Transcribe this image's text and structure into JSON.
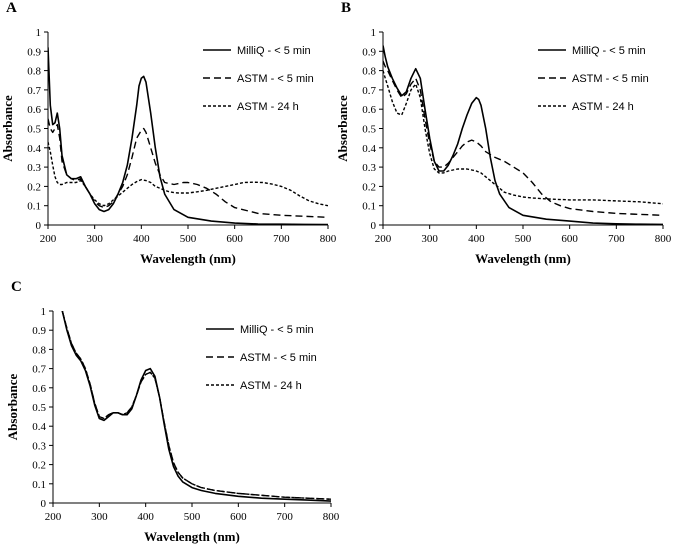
{
  "chart_data": [
    {
      "type": "line",
      "panel": "A",
      "xlabel": "Wavelength (nm)",
      "ylabel": "Absorbance",
      "xlim": [
        200,
        800
      ],
      "ylim": [
        0,
        1
      ],
      "xticks": [
        "200",
        "300",
        "400",
        "500",
        "600",
        "700",
        "800"
      ],
      "yticks": [
        "0",
        "0.1",
        "0.2",
        "0.3",
        "0.4",
        "0.5",
        "0.6",
        "0.7",
        "0.8",
        "0.9",
        "1"
      ],
      "legend_position": "top-right",
      "series": [
        {
          "name": "MilliQ - < 5 min",
          "style": "solid",
          "x": [
            200,
            205,
            210,
            215,
            220,
            225,
            230,
            240,
            250,
            260,
            270,
            280,
            290,
            300,
            310,
            320,
            330,
            340,
            350,
            360,
            370,
            380,
            390,
            395,
            400,
            405,
            410,
            420,
            430,
            440,
            450,
            470,
            500,
            550,
            600,
            650,
            700,
            750,
            800
          ],
          "y": [
            0.92,
            0.62,
            0.52,
            0.53,
            0.58,
            0.5,
            0.36,
            0.26,
            0.24,
            0.24,
            0.25,
            0.2,
            0.16,
            0.11,
            0.08,
            0.07,
            0.08,
            0.11,
            0.16,
            0.22,
            0.31,
            0.45,
            0.62,
            0.72,
            0.76,
            0.77,
            0.74,
            0.58,
            0.4,
            0.25,
            0.16,
            0.08,
            0.04,
            0.02,
            0.01,
            0.005,
            0.004,
            0.003,
            0.002
          ]
        },
        {
          "name": "ASTM - < 5 min",
          "style": "dashed",
          "x": [
            200,
            205,
            210,
            215,
            220,
            225,
            230,
            240,
            250,
            260,
            270,
            280,
            290,
            300,
            310,
            320,
            330,
            340,
            350,
            360,
            370,
            380,
            390,
            400,
            405,
            410,
            420,
            430,
            440,
            450,
            470,
            490,
            500,
            520,
            540,
            560,
            580,
            600,
            650,
            700,
            750,
            800
          ],
          "y": [
            0.55,
            0.5,
            0.48,
            0.5,
            0.52,
            0.45,
            0.33,
            0.26,
            0.24,
            0.23,
            0.24,
            0.2,
            0.16,
            0.12,
            0.1,
            0.09,
            0.1,
            0.12,
            0.16,
            0.2,
            0.26,
            0.35,
            0.45,
            0.49,
            0.5,
            0.48,
            0.4,
            0.32,
            0.26,
            0.22,
            0.21,
            0.22,
            0.22,
            0.21,
            0.19,
            0.16,
            0.12,
            0.09,
            0.06,
            0.05,
            0.045,
            0.04
          ]
        },
        {
          "name": "ASTM - 24 h",
          "style": "dotted",
          "x": [
            200,
            205,
            210,
            215,
            220,
            225,
            230,
            240,
            250,
            260,
            270,
            280,
            290,
            300,
            310,
            320,
            330,
            340,
            350,
            360,
            370,
            380,
            390,
            400,
            410,
            420,
            430,
            440,
            450,
            460,
            470,
            480,
            500,
            520,
            540,
            560,
            580,
            600,
            620,
            640,
            660,
            680,
            700,
            720,
            740,
            760,
            780,
            800
          ],
          "y": [
            0.43,
            0.38,
            0.31,
            0.25,
            0.22,
            0.21,
            0.21,
            0.22,
            0.22,
            0.22,
            0.23,
            0.2,
            0.16,
            0.13,
            0.11,
            0.1,
            0.11,
            0.13,
            0.15,
            0.17,
            0.19,
            0.21,
            0.225,
            0.235,
            0.23,
            0.22,
            0.2,
            0.19,
            0.18,
            0.172,
            0.168,
            0.166,
            0.166,
            0.172,
            0.18,
            0.19,
            0.2,
            0.21,
            0.22,
            0.222,
            0.22,
            0.212,
            0.2,
            0.18,
            0.15,
            0.125,
            0.11,
            0.1
          ]
        }
      ]
    },
    {
      "type": "line",
      "panel": "B",
      "xlabel": "Wavelength (nm)",
      "ylabel": "Absorbance",
      "xlim": [
        200,
        800
      ],
      "ylim": [
        0,
        1
      ],
      "xticks": [
        "200",
        "300",
        "400",
        "500",
        "600",
        "700",
        "800"
      ],
      "yticks": [
        "0",
        "0.1",
        "0.2",
        "0.3",
        "0.4",
        "0.5",
        "0.6",
        "0.7",
        "0.8",
        "0.9",
        "1"
      ],
      "legend_position": "top-right",
      "series": [
        {
          "name": "MilliQ - < 5 min",
          "style": "solid",
          "x": [
            200,
            205,
            210,
            220,
            230,
            240,
            250,
            260,
            270,
            280,
            290,
            300,
            310,
            320,
            330,
            340,
            350,
            360,
            370,
            380,
            390,
            400,
            405,
            410,
            420,
            430,
            440,
            450,
            470,
            500,
            550,
            600,
            650,
            700,
            750,
            800
          ],
          "y": [
            0.93,
            0.87,
            0.82,
            0.76,
            0.71,
            0.67,
            0.69,
            0.76,
            0.81,
            0.76,
            0.6,
            0.45,
            0.33,
            0.28,
            0.28,
            0.31,
            0.36,
            0.42,
            0.5,
            0.57,
            0.63,
            0.66,
            0.65,
            0.62,
            0.5,
            0.35,
            0.23,
            0.16,
            0.09,
            0.05,
            0.03,
            0.02,
            0.01,
            0.006,
            0.004,
            0.003
          ]
        },
        {
          "name": "ASTM - < 5 min",
          "style": "dashed",
          "x": [
            200,
            205,
            210,
            220,
            230,
            240,
            250,
            260,
            270,
            280,
            290,
            300,
            310,
            320,
            330,
            340,
            350,
            360,
            370,
            380,
            390,
            400,
            410,
            420,
            440,
            460,
            480,
            500,
            520,
            540,
            560,
            580,
            600,
            650,
            700,
            750,
            800
          ],
          "y": [
            0.85,
            0.82,
            0.8,
            0.75,
            0.7,
            0.66,
            0.68,
            0.73,
            0.76,
            0.7,
            0.55,
            0.42,
            0.33,
            0.3,
            0.3,
            0.32,
            0.35,
            0.38,
            0.41,
            0.43,
            0.44,
            0.43,
            0.41,
            0.38,
            0.35,
            0.33,
            0.3,
            0.27,
            0.22,
            0.16,
            0.12,
            0.1,
            0.085,
            0.07,
            0.06,
            0.055,
            0.05
          ]
        },
        {
          "name": "ASTM - 24 h",
          "style": "dotted",
          "x": [
            200,
            205,
            210,
            220,
            230,
            240,
            250,
            260,
            270,
            280,
            290,
            300,
            310,
            320,
            330,
            340,
            350,
            360,
            370,
            380,
            390,
            400,
            410,
            420,
            430,
            440,
            450,
            460,
            480,
            500,
            520,
            550,
            600,
            650,
            700,
            750,
            800
          ],
          "y": [
            0.8,
            0.76,
            0.72,
            0.64,
            0.58,
            0.57,
            0.63,
            0.7,
            0.73,
            0.66,
            0.5,
            0.37,
            0.29,
            0.27,
            0.27,
            0.28,
            0.285,
            0.29,
            0.29,
            0.29,
            0.285,
            0.28,
            0.27,
            0.25,
            0.23,
            0.21,
            0.19,
            0.17,
            0.155,
            0.145,
            0.14,
            0.135,
            0.13,
            0.13,
            0.125,
            0.12,
            0.11
          ]
        }
      ]
    },
    {
      "type": "line",
      "panel": "C",
      "xlabel": "Wavelength (nm)",
      "ylabel": "Absorbance",
      "xlim": [
        200,
        800
      ],
      "ylim": [
        0,
        1
      ],
      "xticks": [
        "200",
        "300",
        "400",
        "500",
        "600",
        "700",
        "800"
      ],
      "yticks": [
        "0",
        "0.1",
        "0.2",
        "0.3",
        "0.4",
        "0.5",
        "0.6",
        "0.7",
        "0.8",
        "0.9",
        "1"
      ],
      "legend_position": "top-right",
      "series": [
        {
          "name": "MilliQ - < 5 min",
          "style": "solid",
          "x": [
            220,
            230,
            240,
            250,
            260,
            270,
            280,
            290,
            300,
            310,
            320,
            330,
            340,
            350,
            360,
            370,
            380,
            390,
            400,
            410,
            420,
            430,
            440,
            450,
            460,
            470,
            480,
            500,
            520,
            550,
            600,
            650,
            700,
            750,
            800
          ],
          "y": [
            1.0,
            0.9,
            0.82,
            0.77,
            0.74,
            0.69,
            0.61,
            0.51,
            0.44,
            0.43,
            0.45,
            0.47,
            0.47,
            0.46,
            0.46,
            0.49,
            0.56,
            0.64,
            0.69,
            0.7,
            0.66,
            0.55,
            0.41,
            0.28,
            0.19,
            0.14,
            0.11,
            0.08,
            0.065,
            0.05,
            0.035,
            0.025,
            0.02,
            0.015,
            0.01
          ]
        },
        {
          "name": "ASTM - < 5 min",
          "style": "dashed",
          "x": [
            220,
            230,
            240,
            250,
            260,
            270,
            280,
            290,
            300,
            310,
            320,
            330,
            340,
            350,
            360,
            370,
            380,
            390,
            400,
            410,
            420,
            430,
            440,
            450,
            460,
            470,
            480,
            500,
            520,
            550,
            600,
            650,
            700,
            750,
            800
          ],
          "y": [
            1.0,
            0.91,
            0.83,
            0.78,
            0.75,
            0.7,
            0.62,
            0.52,
            0.45,
            0.44,
            0.46,
            0.47,
            0.47,
            0.46,
            0.47,
            0.5,
            0.56,
            0.63,
            0.67,
            0.68,
            0.65,
            0.55,
            0.42,
            0.3,
            0.21,
            0.16,
            0.13,
            0.1,
            0.08,
            0.065,
            0.05,
            0.04,
            0.03,
            0.025,
            0.02
          ]
        },
        {
          "name": "ASTM - 24 h",
          "style": "dotted",
          "x": [
            220,
            230,
            240,
            250,
            260,
            270,
            280,
            290,
            300,
            310,
            320,
            330,
            340,
            350,
            360,
            370,
            380,
            390,
            400,
            410,
            420,
            430,
            440,
            450,
            460,
            470,
            480,
            500,
            520,
            550,
            600,
            650,
            700,
            750,
            800
          ],
          "y": [
            1.0,
            0.91,
            0.83,
            0.78,
            0.75,
            0.7,
            0.62,
            0.52,
            0.45,
            0.44,
            0.46,
            0.47,
            0.47,
            0.46,
            0.47,
            0.5,
            0.56,
            0.63,
            0.67,
            0.68,
            0.65,
            0.55,
            0.42,
            0.3,
            0.21,
            0.16,
            0.13,
            0.1,
            0.08,
            0.065,
            0.05,
            0.04,
            0.03,
            0.025,
            0.02
          ]
        }
      ]
    }
  ]
}
